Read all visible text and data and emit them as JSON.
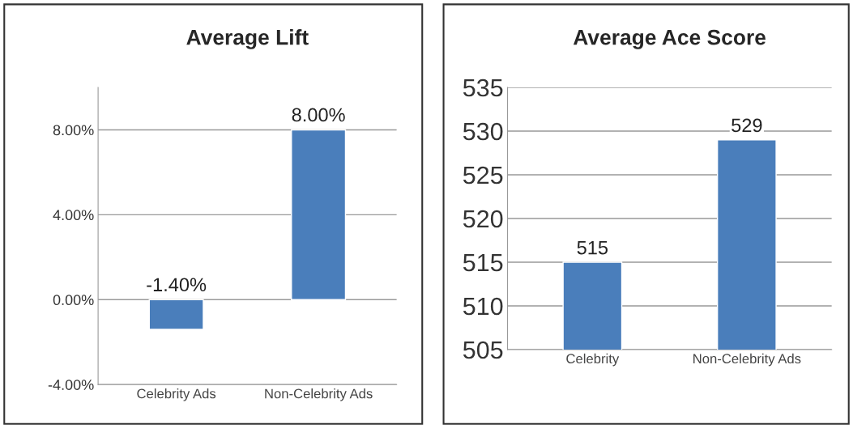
{
  "chart_data": [
    {
      "type": "bar",
      "title": "Average Lift",
      "categories": [
        "Celebrity Ads",
        "Non-Celebrity Ads"
      ],
      "values": [
        -1.4,
        8.0
      ],
      "value_labels": [
        "-1.40%",
        "8.00%"
      ],
      "color": "#4a7ebb",
      "ylim": [
        -4,
        10
      ],
      "yticks": [
        {
          "value": -4,
          "label": "-4.00%"
        },
        {
          "value": 0,
          "label": "0.00%"
        },
        {
          "value": 4,
          "label": "4.00%"
        },
        {
          "value": 8,
          "label": "8.00%"
        }
      ],
      "grid": "y"
    },
    {
      "type": "bar",
      "title": "Average Ace Score",
      "categories": [
        "Celebrity",
        "Non-Celebrity Ads"
      ],
      "values": [
        515,
        529
      ],
      "data_labels": true,
      "color": "#4a7ebb",
      "ylim": [
        505,
        535
      ],
      "yticks": [
        505,
        510,
        515,
        520,
        525,
        530,
        535
      ],
      "grid": "y"
    }
  ]
}
